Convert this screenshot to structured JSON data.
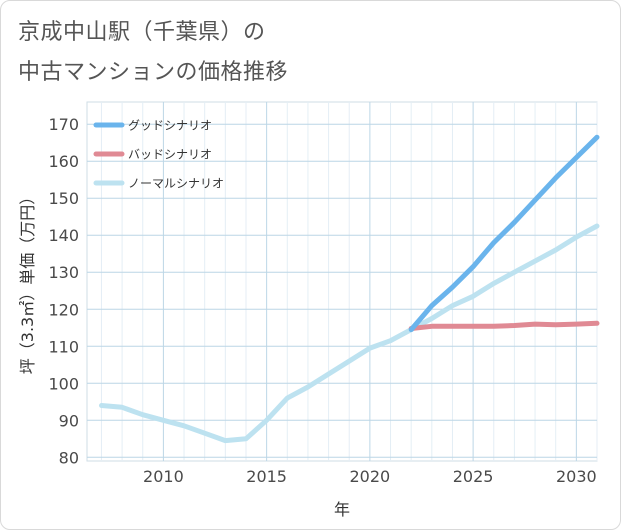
{
  "title_line1": "京成中山駅（千葉県）の",
  "title_line2": "中古マンションの価格推移",
  "chart_data": {
    "type": "line",
    "xlabel": "年",
    "ylabel": "坪（3.3㎡）単価（万円）",
    "xlim": [
      2006.3,
      2031
    ],
    "ylim": [
      79,
      176
    ],
    "x_ticks": [
      2010,
      2015,
      2020,
      2025,
      2030
    ],
    "y_ticks": [
      80,
      90,
      100,
      110,
      120,
      130,
      140,
      150,
      160,
      170
    ],
    "grid": true,
    "legend_position": "top-left",
    "series": [
      {
        "name": "グッドシナリオ",
        "color": "#6ab4ec",
        "x": [
          2022,
          2023,
          2024,
          2025,
          2026,
          2027,
          2028,
          2029,
          2030,
          2031
        ],
        "y": [
          114.5,
          121,
          126,
          131.5,
          138,
          143.5,
          149.5,
          155.5,
          161,
          166.5
        ]
      },
      {
        "name": "バッドシナリオ",
        "color": "#e08a94",
        "x": [
          2022,
          2023,
          2024,
          2025,
          2026,
          2027,
          2028,
          2029,
          2030,
          2031
        ],
        "y": [
          114.8,
          115.4,
          115.4,
          115.4,
          115.4,
          115.6,
          116,
          115.8,
          116,
          116.2
        ]
      },
      {
        "name": "ノーマルシナリオ",
        "color": "#bde2f0",
        "x": [
          2007,
          2008,
          2009,
          2010,
          2011,
          2012,
          2013,
          2014,
          2015,
          2016,
          2017,
          2018,
          2019,
          2020,
          2021,
          2022,
          2023,
          2024,
          2025,
          2026,
          2027,
          2028,
          2029,
          2030,
          2031
        ],
        "y": [
          94,
          93.5,
          91.5,
          90,
          88.5,
          86.5,
          84.5,
          85,
          90,
          96,
          99,
          102.5,
          106,
          109.5,
          111.5,
          114.5,
          117.5,
          121,
          123.5,
          127,
          130,
          133,
          136,
          139.5,
          142.5
        ]
      }
    ]
  }
}
